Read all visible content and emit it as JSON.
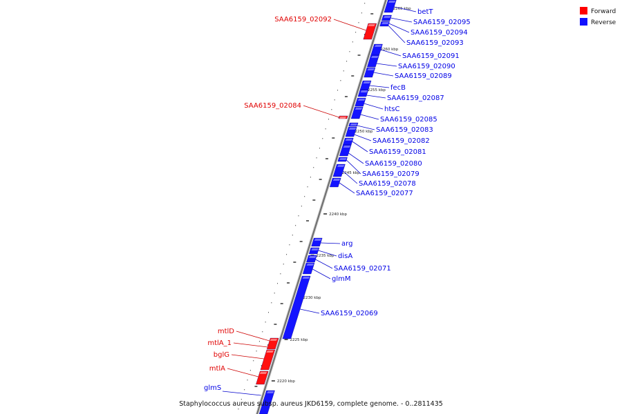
{
  "legend": [
    {
      "label": "Forward",
      "color": "#ff0000"
    },
    {
      "label": "Reverse",
      "color": "#1010ff"
    }
  ],
  "caption": "Staphylococcus aureus subsp. aureus JKD6159, complete genome. - 0..2811435",
  "scale_ticks": [
    "2265 kbp",
    "2260 kbp",
    "2255 kbp",
    "2250 kbp",
    "2245 kbp",
    "2240 kbp",
    "2235 kbp",
    "2230 kbp",
    "2225 kbp",
    "2220 kbp"
  ],
  "forward_genes": [
    "SAA6159_02092",
    "SAA6159_02084",
    "mtlD",
    "mtlA_1",
    "bglG",
    "mtlA"
  ],
  "reverse_genes": [
    "betT",
    "SAA6159_02095",
    "SAA6159_02094",
    "SAA6159_02093",
    "SAA6159_02091",
    "SAA6159_02090",
    "SAA6159_02089",
    "fecB",
    "SAA6159_02087",
    "htsC",
    "SAA6159_02085",
    "SAA6159_02083",
    "SAA6159_02082",
    "SAA6159_02081",
    "SAA6159_02080",
    "SAA6159_02079",
    "SAA6159_02078",
    "SAA6159_02077",
    "arg",
    "disA",
    "SAA6159_02071",
    "glmM",
    "SAA6159_02069",
    "glmS"
  ]
}
